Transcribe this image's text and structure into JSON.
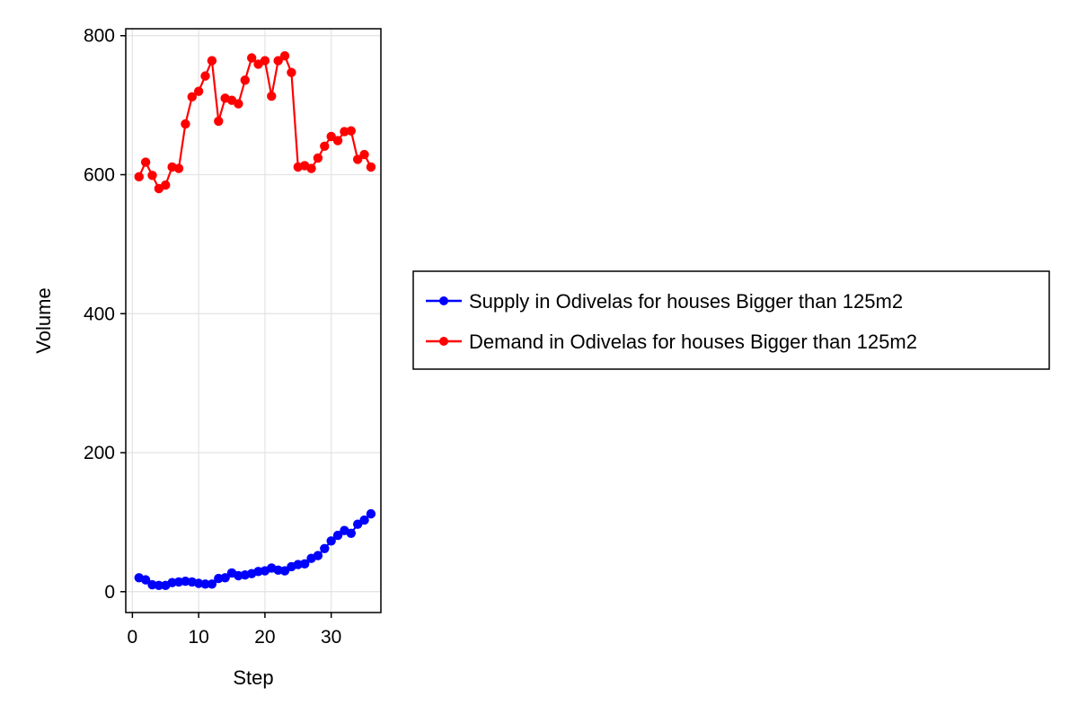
{
  "chart_data": {
    "type": "line",
    "title": "",
    "xlabel": "Step",
    "ylabel": "Volume",
    "xlim": [
      -1,
      37.5
    ],
    "ylim": [
      -30,
      810
    ],
    "x_ticks": [
      0,
      10,
      20,
      30
    ],
    "y_ticks": [
      0,
      200,
      400,
      600,
      800
    ],
    "grid": true,
    "legend_position": "right",
    "x": [
      1,
      2,
      3,
      4,
      5,
      6,
      7,
      8,
      9,
      10,
      11,
      12,
      13,
      14,
      15,
      16,
      17,
      18,
      19,
      20,
      21,
      22,
      23,
      24,
      25,
      26,
      27,
      28,
      29,
      30,
      31,
      32,
      33,
      34,
      35,
      36
    ],
    "series": [
      {
        "name": "Supply in Odivelas for houses Bigger than 125m2",
        "color": "#0000ff",
        "values": [
          20,
          17,
          10,
          9,
          9,
          13,
          14,
          15,
          14,
          12,
          11,
          11,
          19,
          20,
          27,
          23,
          24,
          26,
          29,
          30,
          34,
          31,
          30,
          36,
          39,
          40,
          48,
          52,
          62,
          73,
          81,
          88,
          84,
          97,
          103,
          112
        ]
      },
      {
        "name": "Demand in Odivelas for houses Bigger than 125m2",
        "color": "#ff0000",
        "values": [
          597,
          618,
          599,
          580,
          585,
          611,
          609,
          673,
          712,
          720,
          742,
          764,
          677,
          710,
          707,
          702,
          736,
          768,
          759,
          764,
          713,
          764,
          771,
          747,
          611,
          613,
          609,
          624,
          641,
          655,
          649,
          662,
          663,
          622,
          629,
          611
        ]
      }
    ]
  }
}
